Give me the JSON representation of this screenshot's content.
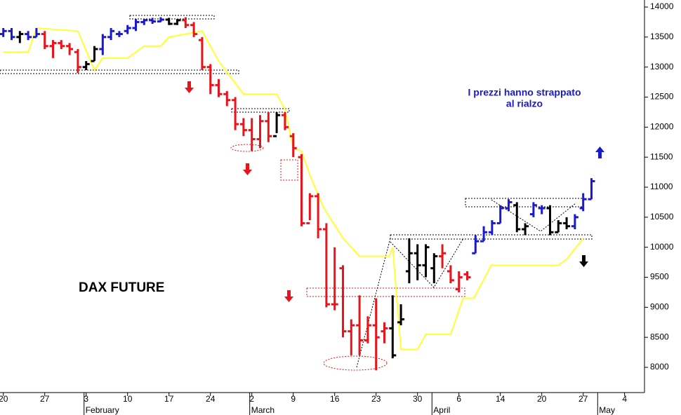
{
  "chart_data": {
    "type": "ohlc",
    "title": "DAX FUTURE",
    "annotation": [
      "I prezzi hanno strappato",
      "al rialzo"
    ],
    "ylim": [
      7580,
      14117
    ],
    "yticks": [
      8000,
      8500,
      9000,
      9500,
      10000,
      10500,
      11000,
      11500,
      12000,
      12500,
      13000,
      13500,
      14000
    ],
    "xlim": [
      -0.4,
      77.4
    ],
    "xticks": [
      {
        "value": 0,
        "label": "20"
      },
      {
        "value": 5,
        "label": "27"
      },
      {
        "value": 10,
        "label": "3"
      },
      {
        "value": 15,
        "label": "10"
      },
      {
        "value": 20,
        "label": "17"
      },
      {
        "value": 25,
        "label": "24"
      },
      {
        "value": 30,
        "label": "2"
      },
      {
        "value": 35,
        "label": "9"
      },
      {
        "value": 40,
        "label": "16"
      },
      {
        "value": 45,
        "label": "23"
      },
      {
        "value": 50,
        "label": "30"
      },
      {
        "value": 55,
        "label": "6"
      },
      {
        "value": 60,
        "label": "14"
      },
      {
        "value": 65,
        "label": "20"
      },
      {
        "value": 70,
        "label": "27"
      },
      {
        "value": 75,
        "label": "4"
      }
    ],
    "month_ticks": [
      {
        "value": 10,
        "label": "February"
      },
      {
        "value": 30,
        "label": "March"
      },
      {
        "value": 52,
        "label": "April"
      },
      {
        "value": 72,
        "label": "May"
      }
    ],
    "bars": {
      "x": [
        0,
        1,
        2,
        3,
        4,
        5,
        6,
        7,
        8,
        9,
        10,
        11,
        12,
        13,
        14,
        15,
        16,
        17,
        18,
        19,
        20,
        21,
        22,
        23,
        24,
        25,
        26,
        27,
        28,
        29,
        30,
        31,
        32,
        33,
        34,
        35,
        36,
        37,
        38,
        39,
        40,
        41,
        42,
        43,
        44,
        45,
        46,
        47,
        48,
        49,
        50,
        51,
        52,
        53,
        54,
        55,
        56,
        57,
        58,
        59,
        60,
        61,
        62,
        63,
        64,
        65,
        66,
        67,
        68,
        69,
        70,
        71
      ],
      "open": [
        13550,
        13600,
        13500,
        13550,
        13500,
        13550,
        13350,
        13400,
        13350,
        13250,
        13000,
        13100,
        13300,
        13500,
        13550,
        13600,
        13650,
        13750,
        13780,
        13760,
        13790,
        13720,
        13780,
        13700,
        13450,
        13000,
        12700,
        12550,
        12450,
        12050,
        11950,
        11800,
        12100,
        11850,
        12200,
        11850,
        11500,
        10400,
        10850,
        10300,
        9050,
        9650,
        8600,
        8700,
        8450,
        8700,
        8600,
        8650,
        8750,
        9600,
        9900,
        9700,
        9650,
        9850,
        9600,
        9300,
        9550,
        9900,
        10100,
        10250,
        10400,
        10650,
        10700,
        10300,
        10550,
        10650,
        10650,
        10250,
        10400,
        10350,
        10650,
        10800
      ],
      "high": [
        13650,
        13650,
        13600,
        13600,
        13650,
        13600,
        13450,
        13450,
        13400,
        13300,
        13100,
        13350,
        13550,
        13650,
        13600,
        13700,
        13800,
        13800,
        13820,
        13830,
        13820,
        13800,
        13830,
        13750,
        13500,
        13050,
        12800,
        12600,
        12500,
        12150,
        12150,
        12200,
        12250,
        12250,
        12250,
        11900,
        11550,
        10900,
        10900,
        10400,
        10000,
        9700,
        8800,
        9200,
        8850,
        9150,
        8750,
        9200,
        9050,
        10150,
        10050,
        10050,
        9900,
        10050,
        9700,
        9600,
        9600,
        10200,
        10350,
        10450,
        10700,
        10800,
        10750,
        10400,
        10750,
        10700,
        10700,
        10450,
        10500,
        10550,
        10900,
        11150
      ],
      "low": [
        13500,
        13450,
        13400,
        13450,
        13500,
        13300,
        13150,
        13300,
        13200,
        12900,
        12950,
        13100,
        13200,
        13450,
        13500,
        13550,
        13600,
        13700,
        13720,
        13750,
        13700,
        13700,
        13650,
        13500,
        12950,
        12550,
        12500,
        12350,
        11950,
        11850,
        11600,
        11650,
        11750,
        11900,
        11950,
        11500,
        10350,
        10450,
        10150,
        9000,
        8950,
        8500,
        8200,
        8200,
        8400,
        7950,
        8400,
        8150,
        8700,
        9400,
        9450,
        9500,
        9400,
        9650,
        9400,
        9250,
        9450,
        9900,
        10100,
        10200,
        10400,
        10600,
        10250,
        10200,
        10500,
        10550,
        10200,
        10250,
        10300,
        10300,
        10600,
        10800
      ],
      "close": [
        13600,
        13500,
        13550,
        13500,
        13550,
        13350,
        13400,
        13350,
        13300,
        13000,
        13050,
        13300,
        13500,
        13600,
        13550,
        13650,
        13750,
        13780,
        13760,
        13790,
        13720,
        13780,
        13700,
        13550,
        13000,
        12700,
        12550,
        12450,
        12050,
        11950,
        11800,
        12100,
        11850,
        12200,
        12000,
        11650,
        10400,
        10850,
        10300,
        9050,
        9050,
        8600,
        8700,
        8450,
        8700,
        8500,
        8650,
        8200,
        8800,
        9900,
        9700,
        10000,
        9850,
        9900,
        9450,
        9500,
        9500,
        10100,
        10250,
        10400,
        10650,
        10750,
        10300,
        10350,
        10700,
        10650,
        10250,
        10400,
        10350,
        10500,
        10800,
        11100
      ],
      "colors": [
        "#1a1acc",
        "#1a1acc",
        "#000000",
        "#1a1acc",
        "#1a1acc",
        "#e8141c",
        "#e8141c",
        "#e8141c",
        "#e8141c",
        "#e8141c",
        "#000000",
        "#000000",
        "#1a1acc",
        "#1a1acc",
        "#1a1acc",
        "#1a1acc",
        "#1a1acc",
        "#1a1acc",
        "#1a1acc",
        "#1a1acc",
        "#000000",
        "#000000",
        "#e8141c",
        "#e8141c",
        "#e8141c",
        "#e8141c",
        "#e8141c",
        "#e8141c",
        "#e8141c",
        "#e8141c",
        "#e8141c",
        "#e8141c",
        "#e8141c",
        "#000000",
        "#e8141c",
        "#e8141c",
        "#e8141c",
        "#e8141c",
        "#e8141c",
        "#e8141c",
        "#e8141c",
        "#e8141c",
        "#e8141c",
        "#e8141c",
        "#e8141c",
        "#e8141c",
        "#e8141c",
        "#000000",
        "#000000",
        "#000000",
        "#000000",
        "#000000",
        "#000000",
        "#e8141c",
        "#e8141c",
        "#e8141c",
        "#e8141c",
        "#1a1acc",
        "#1a1acc",
        "#1a1acc",
        "#1a1acc",
        "#1a1acc",
        "#000000",
        "#000000",
        "#1a1acc",
        "#1a1acc",
        "#000000",
        "#000000",
        "#000000",
        "#1a1acc",
        "#1a1acc",
        "#1a1acc"
      ]
    },
    "stop": {
      "color": "#ffff33",
      "x": [
        0,
        3,
        4,
        9,
        11,
        12,
        15,
        17,
        19,
        20,
        24,
        26,
        29,
        33,
        34,
        35,
        36,
        37,
        38.7,
        41,
        43,
        46.6,
        47,
        48,
        50,
        51,
        54,
        55.5,
        56.8,
        58.9,
        67,
        68,
        70
      ],
      "values": [
        13250,
        13250,
        13650,
        13600,
        12950,
        13150,
        13150,
        13350,
        13350,
        13500,
        13600,
        13100,
        12550,
        12550,
        12300,
        11650,
        11600,
        11200,
        10650,
        10150,
        9850,
        9850,
        10000,
        8300,
        8300,
        8550,
        8550,
        9150,
        9150,
        9700,
        9700,
        9800,
        10150
      ]
    }
  }
}
